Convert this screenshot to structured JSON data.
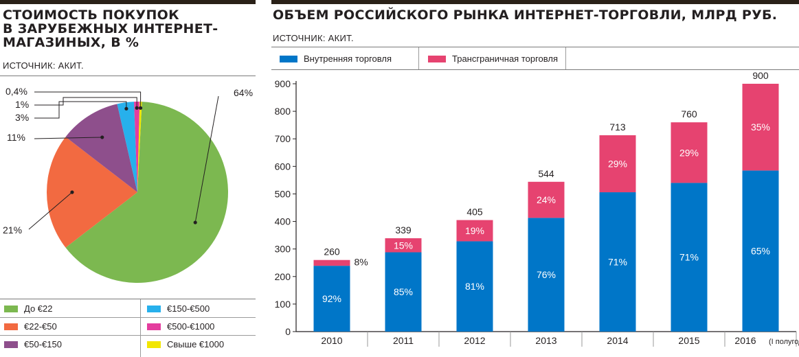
{
  "left_panel": {
    "title": "СТОИМОСТЬ ПОКУПОК\nВ ЗАРУБЕЖНЫХ ИНТЕРНЕТ-\nМАГАЗИНЫХ, В %",
    "source": "ИСТОЧНИК: АКИТ."
  },
  "right_panel": {
    "title": "ОБЪЕМ РОССИЙСКОГО РЫНКА ИНТЕРНЕТ-ТОРГОВЛИ, МЛРД РУБ.",
    "source": "ИСТОЧНИК: АКИТ."
  },
  "chart_data": [
    {
      "type": "pie",
      "legend_position": "bottom",
      "slices": [
        {
          "label": "До €22",
          "value": 64,
          "value_label": "64%",
          "color": "#7cb850"
        },
        {
          "label": "€22-€50",
          "value": 21,
          "value_label": "21%",
          "color": "#f26a41"
        },
        {
          "label": "€50-€150",
          "value": 11,
          "value_label": "11%",
          "color": "#8e4f8c"
        },
        {
          "label": "€150-€500",
          "value": 3,
          "value_label": "3%",
          "color": "#27b0ec"
        },
        {
          "label": "€500-€1000",
          "value": 1,
          "value_label": "1%",
          "color": "#e43d9e"
        },
        {
          "label": "Свыше €1000",
          "value": 0.4,
          "value_label": "0,4%",
          "color": "#f2e600"
        }
      ]
    },
    {
      "type": "bar",
      "stacked": true,
      "legend_position": "top-left",
      "grid": false,
      "categories": [
        "2010",
        "2011",
        "2012",
        "2013",
        "2014",
        "2015",
        "2016"
      ],
      "category_notes": [
        "",
        "",
        "",
        "",
        "",
        "",
        "(I полугодие)"
      ],
      "ylim": [
        0,
        900
      ],
      "yticks": [
        0,
        100,
        200,
        300,
        400,
        500,
        600,
        700,
        800,
        900
      ],
      "totals": [
        260,
        339,
        405,
        544,
        713,
        760,
        900
      ],
      "series": [
        {
          "name": "Внутренняя торговля",
          "color": "#0076c8",
          "values": [
            239,
            288,
            328,
            413,
            506,
            540,
            585
          ],
          "labels": [
            "92%",
            "85%",
            "81%",
            "76%",
            "71%",
            "71%",
            "65%"
          ]
        },
        {
          "name": "Трансграничная торговля",
          "color": "#e64370",
          "values": [
            21,
            51,
            77,
            131,
            207,
            220,
            315
          ],
          "labels": [
            "8%",
            "15%",
            "19%",
            "24%",
            "29%",
            "29%",
            "35%"
          ]
        }
      ]
    }
  ]
}
